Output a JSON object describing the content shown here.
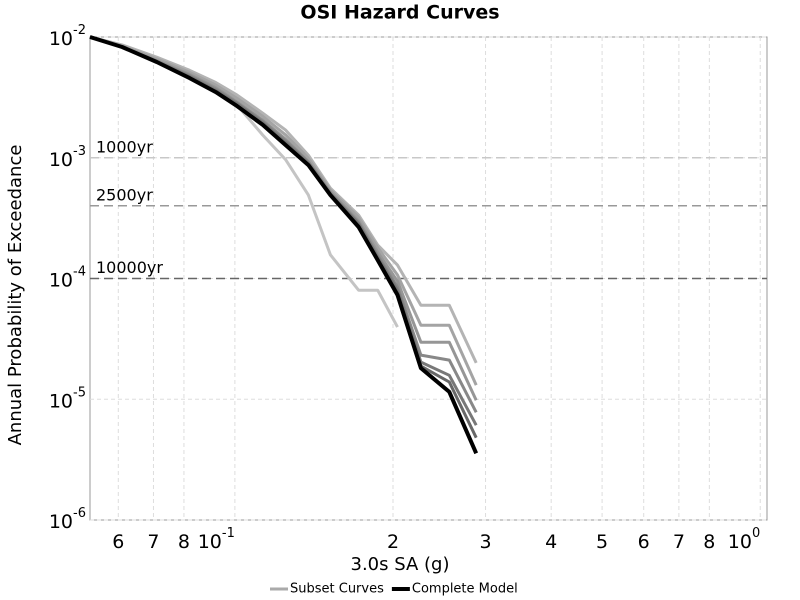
{
  "chart_data": {
    "type": "line",
    "title": "OSI Hazard Curves",
    "x_label": "3.0s SA (g)",
    "y_label": "Annual Probability of Exceedance",
    "x_scale": "log",
    "y_scale": "log",
    "grid": true,
    "legend": "bottom",
    "xlim": [
      0.053,
      1.03
    ],
    "ylim": [
      1e-06,
      0.01
    ],
    "xticks": [
      {
        "value": 0.06,
        "label": "6"
      },
      {
        "value": 0.07,
        "label": "7"
      },
      {
        "value": 0.08,
        "label": "8"
      },
      {
        "value": 0.1,
        "label": "10",
        "label_sup": "-1"
      },
      {
        "value": 0.2,
        "label": "2"
      },
      {
        "value": 0.3,
        "label": "3"
      },
      {
        "value": 0.4,
        "label": "4"
      },
      {
        "value": 0.5,
        "label": "5"
      },
      {
        "value": 0.6,
        "label": "6"
      },
      {
        "value": 0.7,
        "label": "7"
      },
      {
        "value": 0.8,
        "label": "8"
      },
      {
        "value": 1,
        "label": "10",
        "label_sup": "0"
      }
    ],
    "yticks": [
      {
        "value": 1e-06,
        "label": "10",
        "label_sup": "-6"
      },
      {
        "value": 1e-05,
        "label": "10",
        "label_sup": "-5"
      },
      {
        "value": 0.0001,
        "label": "10",
        "label_sup": "-4"
      },
      {
        "value": 0.001,
        "label": "10",
        "label_sup": "-3"
      },
      {
        "value": 0.01,
        "label": "10",
        "label_sup": "-2"
      }
    ],
    "reference_lines": [
      {
        "value": 0.001,
        "label": "1000yr",
        "color": "#c8c8c8"
      },
      {
        "value": 0.0004,
        "label": "2500yr",
        "color": "#999999"
      },
      {
        "value": 0.0001,
        "label": "10000yr",
        "color": "#666666"
      }
    ],
    "x": [
      0.053,
      0.061,
      0.071,
      0.082,
      0.092,
      0.101,
      0.113,
      0.125,
      0.138,
      0.152,
      0.172,
      0.187,
      0.204,
      0.226,
      0.256,
      0.288
    ],
    "series": [
      {
        "name": "Subset Curves",
        "color": "#aaaaaa",
        "lines": [
          {
            "color": "#c4c4c4",
            "values": [
              0.01,
              0.0084,
              0.00645,
              0.00475,
              0.00378,
              0.00273,
              0.00154,
              0.00096,
              0.000491,
              0.000157,
              8e-05,
              8e-05,
              3.96e-05,
              null,
              null,
              null
            ]
          },
          {
            "color": "#b4b4b4",
            "values": [
              0.01,
              0.0086,
              0.0068,
              0.0053,
              0.0042,
              0.0033,
              0.00234,
              0.00169,
              0.00105,
              0.00056,
              0.000335,
              0.000189,
              0.000129,
              6e-05,
              6e-05,
              2e-05
            ]
          },
          {
            "color": "#a4a4a4",
            "values": [
              0.01,
              0.0084,
              0.0066,
              0.0051,
              0.004,
              0.0031,
              0.0022,
              0.00154,
              0.00099,
              0.00054,
              0.00032,
              0.00018,
              0.000107,
              4.1e-05,
              4.1e-05,
              1.31e-05
            ]
          },
          {
            "color": "#969696",
            "values": [
              0.01,
              0.0083,
              0.0064,
              0.0049,
              0.0038,
              0.0029,
              0.00205,
              0.00142,
              0.00093,
              0.00052,
              0.0003,
              0.000165,
              9.5e-05,
              2.97e-05,
              2.97e-05,
              9.8e-06
            ]
          },
          {
            "color": "#888888",
            "values": [
              0.01,
              0.0083,
              0.0063,
              0.0048,
              0.0037,
              0.00285,
              0.002,
              0.00138,
              0.00092,
              0.00051,
              0.00029,
              0.000155,
              8.5e-05,
              2.32e-05,
              2.11e-05,
              7.8e-06
            ]
          },
          {
            "color": "#787878",
            "values": [
              0.01,
              0.0083,
              0.0063,
              0.0047,
              0.0036,
              0.0028,
              0.00195,
              0.00133,
              0.0009,
              0.0005,
              0.000285,
              0.00015,
              8e-05,
              2.03e-05,
              1.58e-05,
              6.1e-06
            ]
          },
          {
            "color": "#686868",
            "values": [
              0.01,
              0.0083,
              0.0062,
              0.0046,
              0.00355,
              0.0027,
              0.0019,
              0.0013,
              0.00088,
              0.000495,
              0.000275,
              0.000145,
              7.6e-05,
              1.88e-05,
              1.39e-05,
              4.8e-06
            ]
          }
        ]
      },
      {
        "name": "Complete Model",
        "color": "#000000",
        "values": [
          0.01,
          0.00827,
          0.00621,
          0.00457,
          0.0035,
          0.00268,
          0.00187,
          0.00127,
          0.00087,
          0.000491,
          0.000267,
          0.000142,
          7.3e-05,
          1.81e-05,
          1.15e-05,
          3.57e-06
        ]
      }
    ]
  }
}
